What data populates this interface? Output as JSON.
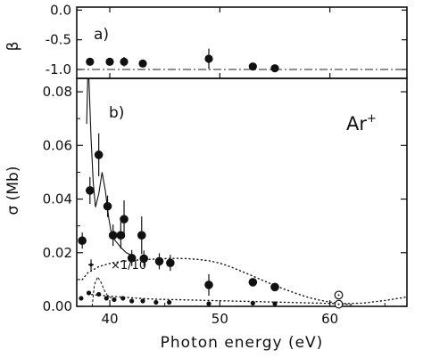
{
  "chart_data": [
    {
      "panel": "a)",
      "type": "scatter",
      "ylabel": "β",
      "ylim": [
        -1.15,
        0.05
      ],
      "xlim": [
        37,
        67
      ],
      "yticks": [
        "0.0",
        "-0.5",
        "-1.0"
      ],
      "ytick_values": [
        0.0,
        -0.5,
        -1.0
      ],
      "reference_line": -1.0,
      "series": [
        {
          "points": [
            {
              "x": 38.2,
              "y": -0.87,
              "err": 0.05
            },
            {
              "x": 40.0,
              "y": -0.87,
              "err": 0.06
            },
            {
              "x": 41.3,
              "y": -0.87,
              "err": 0.08
            },
            {
              "x": 43.0,
              "y": -0.9,
              "err": 0.06
            },
            {
              "x": 49.0,
              "y": -0.82,
              "err": 0.17
            },
            {
              "x": 53.0,
              "y": -0.95,
              "err": 0.04
            },
            {
              "x": 55.0,
              "y": -0.98,
              "err": 0.03
            }
          ]
        }
      ]
    },
    {
      "panel": "b)",
      "type": "scatter",
      "annotation": "Ar",
      "annotation_sup": "+",
      "scale_note": "×1/10",
      "xlabel": "Photon energy (eV)",
      "ylabel": "σ (Mb)",
      "xlim": [
        37,
        67
      ],
      "ylim": [
        0,
        0.085
      ],
      "xticks": [
        "40",
        "50",
        "60"
      ],
      "xtick_values": [
        40,
        50,
        60
      ],
      "yticks": [
        "0.00",
        "0.02",
        "0.04",
        "0.06",
        "0.08"
      ],
      "ytick_values": [
        0,
        0.02,
        0.04,
        0.06,
        0.08
      ],
      "series": [
        {
          "marker": "filled-circle-large",
          "points": [
            {
              "x": 37.5,
              "y": 0.0245,
              "err": 0.003
            },
            {
              "x": 38.2,
              "y": 0.0432,
              "err": 0.005
            },
            {
              "x": 39.0,
              "y": 0.0565,
              "err": 0.008
            },
            {
              "x": 39.8,
              "y": 0.0373,
              "err": 0.004
            },
            {
              "x": 40.3,
              "y": 0.0265,
              "err": 0.004
            },
            {
              "x": 41.0,
              "y": 0.0265,
              "err": 0.005
            },
            {
              "x": 41.3,
              "y": 0.0325,
              "err": 0.007
            },
            {
              "x": 42.0,
              "y": 0.018,
              "err": 0.003
            },
            {
              "x": 42.9,
              "y": 0.0265,
              "err": 0.007
            },
            {
              "x": 43.1,
              "y": 0.0178,
              "err": 0.003
            },
            {
              "x": 44.5,
              "y": 0.0168,
              "err": 0.003
            },
            {
              "x": 45.5,
              "y": 0.0162,
              "err": 0.003
            },
            {
              "x": 49.0,
              "y": 0.008,
              "err": 0.004
            },
            {
              "x": 53.0,
              "y": 0.009,
              "err": 0.0012
            },
            {
              "x": 55.0,
              "y": 0.0072,
              "err": 0.0012
            }
          ]
        },
        {
          "marker": "filled-circle-small",
          "points": [
            {
              "x": 37.4,
              "y": 0.003
            },
            {
              "x": 38.1,
              "y": 0.005
            },
            {
              "x": 39.0,
              "y": 0.0045
            },
            {
              "x": 39.7,
              "y": 0.003
            },
            {
              "x": 40.4,
              "y": 0.0025
            },
            {
              "x": 41.2,
              "y": 0.003
            },
            {
              "x": 42.0,
              "y": 0.002
            },
            {
              "x": 43.0,
              "y": 0.002
            },
            {
              "x": 44.2,
              "y": 0.0015
            },
            {
              "x": 45.4,
              "y": 0.0015
            },
            {
              "x": 49.0,
              "y": 0.001
            },
            {
              "x": 53.0,
              "y": 0.0012
            },
            {
              "x": 55.0,
              "y": 0.001
            }
          ]
        },
        {
          "marker": "open-circle-dotted",
          "points": [
            {
              "x": 60.8,
              "y": 0.0042
            },
            {
              "x": 60.8,
              "y": 0.0008
            }
          ]
        },
        {
          "marker": "cross-small",
          "points": [
            {
              "x": 38.3,
              "y": 0.0155,
              "err": 0.002
            }
          ]
        }
      ],
      "curves": [
        {
          "style": "solid",
          "x": [
            37.9,
            38.0,
            38.1,
            38.3,
            38.5,
            38.7,
            39.0,
            39.3,
            39.6,
            39.9,
            40.2,
            40.6,
            41.0,
            41.5,
            42.0
          ],
          "y": [
            0.068,
            0.085,
            0.085,
            0.063,
            0.046,
            0.037,
            0.042,
            0.05,
            0.043,
            0.033,
            0.026,
            0.024,
            0.022,
            0.02,
            0.019
          ]
        },
        {
          "style": "dotted",
          "x": [
            37.5,
            38.0,
            39.0,
            40.0,
            41.0,
            42.0,
            43.0,
            44.0,
            45.0,
            46.0,
            47.0,
            48.0,
            49.0,
            50.0,
            51.0,
            52.0,
            53.0,
            54.0,
            55.0,
            56.0,
            57.0,
            58.0,
            59.0,
            60.0,
            61.0,
            62.0
          ],
          "y": [
            0.01,
            0.0125,
            0.0148,
            0.016,
            0.0167,
            0.0171,
            0.0174,
            0.0176,
            0.0178,
            0.0179,
            0.0178,
            0.0175,
            0.017,
            0.0161,
            0.0147,
            0.013,
            0.0113,
            0.0095,
            0.0078,
            0.0062,
            0.0047,
            0.0034,
            0.0024,
            0.0016,
            0.001,
            0.0006
          ]
        },
        {
          "style": "dotted",
          "x": [
            38.0,
            39.0,
            40.0,
            41.0,
            42.0,
            43.0,
            44.0,
            45.0,
            47.0,
            49.0,
            51.0,
            53.0,
            55.0,
            57.0,
            59.0,
            61.0,
            63.0,
            65.0,
            67.0
          ],
          "y": [
            0.0045,
            0.0042,
            0.0038,
            0.0035,
            0.0032,
            0.0029,
            0.0027,
            0.0026,
            0.0024,
            0.0022,
            0.002,
            0.0018,
            0.0016,
            0.0014,
            0.0012,
            0.001,
            0.0012,
            0.0022,
            0.0035
          ]
        },
        {
          "style": "dashed-small",
          "x": [
            38.4,
            38.6,
            38.9,
            39.2,
            39.5,
            39.8,
            40.2,
            40.6
          ],
          "y": [
            0.0,
            0.008,
            0.011,
            0.009,
            0.006,
            0.004,
            0.003,
            0.002
          ]
        }
      ]
    }
  ]
}
